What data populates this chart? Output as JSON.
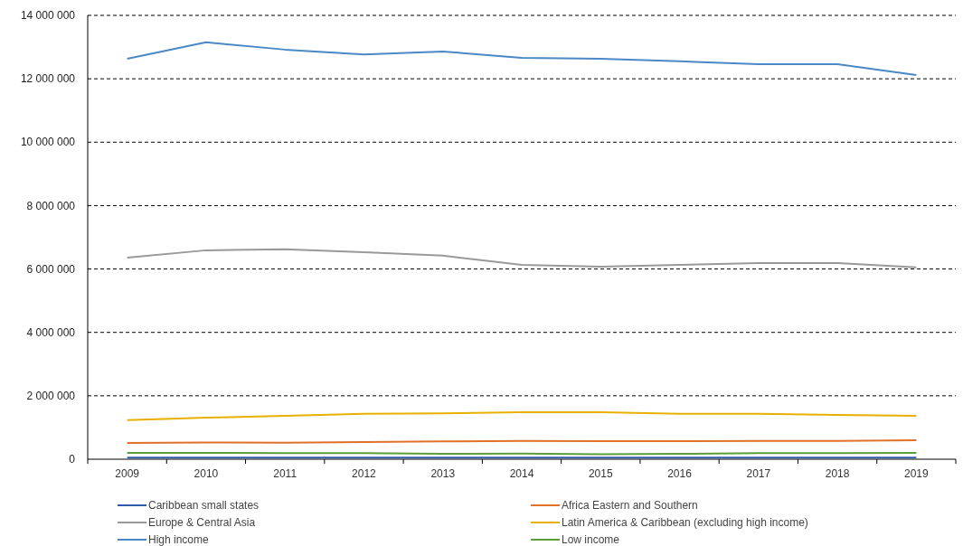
{
  "chart_data": {
    "type": "line",
    "categories": [
      "2009",
      "2010",
      "2011",
      "2012",
      "2013",
      "2014",
      "2015",
      "2016",
      "2017",
      "2018",
      "2019"
    ],
    "ylim": [
      0,
      14000000
    ],
    "yticks": [
      {
        "value": 0,
        "label": "0"
      },
      {
        "value": 2000000,
        "label": "2 000 000"
      },
      {
        "value": 4000000,
        "label": "4 000 000"
      },
      {
        "value": 6000000,
        "label": "6 000 000"
      },
      {
        "value": 8000000,
        "label": "8 000 000"
      },
      {
        "value": 10000000,
        "label": "10 000 000"
      },
      {
        "value": 12000000,
        "label": "12 000 000"
      },
      {
        "value": 14000000,
        "label": "14 000 000"
      }
    ],
    "grid": "y",
    "legend": "bottom",
    "line_style": "solid",
    "marker": "none",
    "series": [
      {
        "name": "Caribbean small states",
        "color": "#2e5ca8",
        "values": [
          50000,
          50000,
          50000,
          50000,
          50000,
          50000,
          50000,
          50000,
          50000,
          50000,
          50000
        ]
      },
      {
        "name": "Africa Eastern and Southern",
        "color": "#e0702a",
        "values": [
          510000,
          530000,
          520000,
          540000,
          560000,
          580000,
          570000,
          570000,
          580000,
          580000,
          600000
        ]
      },
      {
        "name": "Europe & Central Asia",
        "color": "#999999",
        "values": [
          6360000,
          6590000,
          6620000,
          6530000,
          6420000,
          6130000,
          6070000,
          6130000,
          6190000,
          6190000,
          6050000
        ]
      },
      {
        "name": "Latin America & Caribbean (excluding high income)",
        "color": "#e8b000",
        "values": [
          1230000,
          1310000,
          1370000,
          1430000,
          1450000,
          1480000,
          1480000,
          1430000,
          1430000,
          1400000,
          1370000
        ]
      },
      {
        "name": "High income",
        "color": "#4a88c6",
        "values": [
          12630000,
          13150000,
          12920000,
          12770000,
          12860000,
          12660000,
          12630000,
          12550000,
          12460000,
          12460000,
          12120000
        ]
      },
      {
        "name": "Low income",
        "color": "#5a9e3a",
        "values": [
          200000,
          200000,
          190000,
          190000,
          170000,
          180000,
          160000,
          170000,
          190000,
          190000,
          200000
        ]
      }
    ]
  }
}
